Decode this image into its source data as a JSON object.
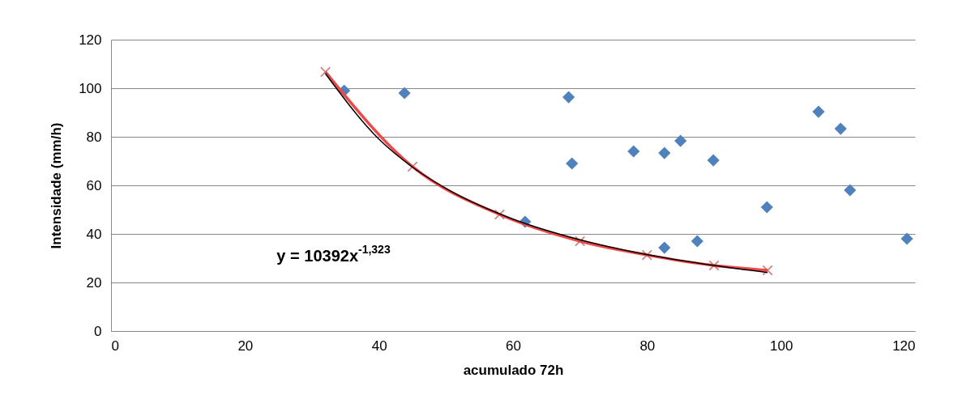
{
  "chart_data": {
    "type": "scatter",
    "xlabel": "acumulado 72h",
    "ylabel": "Intensidade (mm/h)",
    "xlim": [
      0,
      120
    ],
    "xticks": [
      0,
      20,
      40,
      60,
      80,
      100,
      120
    ],
    "ylim": [
      0,
      120
    ],
    "yticks": [
      0,
      20,
      40,
      60,
      80,
      100,
      120
    ],
    "grid": "y",
    "annotations": [
      "y = 10392x$^{-1,323}$"
    ],
    "series": [
      {
        "marker": "diamond",
        "color": "#4f81bd",
        "x": [
          34.8,
          43.8,
          68.3,
          68.8,
          61.8,
          78,
          82.6,
          85,
          89.9,
          82.6,
          87.5,
          97.9,
          105.6,
          108.9,
          110.3,
          118.8
        ],
        "values": [
          99,
          98,
          96.3,
          69,
          45,
          74,
          73.3,
          78.3,
          70.3,
          34.3,
          37,
          51,
          90.3,
          83.3,
          58,
          38
        ]
      },
      {
        "type": "line",
        "marker": "cross",
        "color": "#f04848",
        "x": [
          32,
          45,
          58,
          70,
          80,
          90,
          98
        ],
        "values": [
          106.7,
          67.7,
          48,
          37,
          31.3,
          27,
          25
        ]
      },
      {
        "type": "line",
        "marker": "none",
        "color": "#000000",
        "x": [
          32,
          40,
          45,
          50,
          60,
          70,
          80,
          90,
          98
        ],
        "values": [
          106,
          79,
          67.5,
          58.7,
          46.1,
          37.6,
          31.5,
          27,
          24.1
        ]
      }
    ]
  }
}
